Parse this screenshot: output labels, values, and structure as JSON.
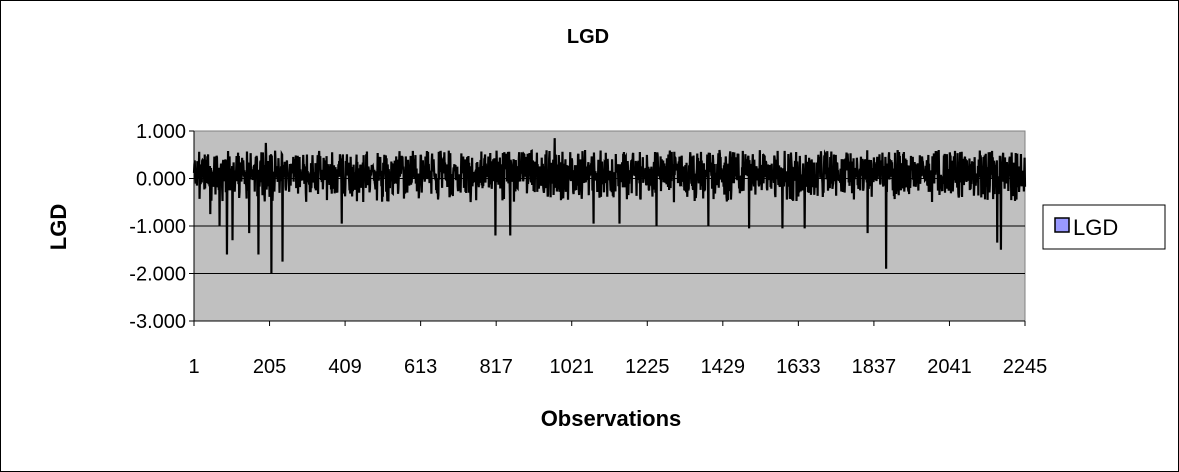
{
  "chart_data": {
    "type": "line",
    "title": "LGD",
    "xlabel": "Observations",
    "ylabel": "LGD",
    "x_range": [
      1,
      2245
    ],
    "ylim": [
      -3,
      1
    ],
    "y_ticks": [
      "1.000",
      "0.000",
      "-1.000",
      "-2.000",
      "-3.000"
    ],
    "y_tick_values": [
      1,
      0,
      -1,
      -2,
      -3
    ],
    "x_ticks": [
      "1",
      "205",
      "409",
      "613",
      "817",
      "1021",
      "1225",
      "1429",
      "1633",
      "1837",
      "2041",
      "2245"
    ],
    "x_tick_values": [
      1,
      205,
      409,
      613,
      817,
      1021,
      1225,
      1429,
      1633,
      1837,
      2041,
      2245
    ],
    "grid": "horizontal",
    "plot_background": "#c0c0c0",
    "line_color": "#000000",
    "legend_position": "right",
    "series": [
      {
        "name": "LGD",
        "legend_swatch_color": "#9999ff",
        "sample_range": [
          1,
          2245
        ],
        "typical_range": [
          -0.5,
          0.6
        ],
        "notable_points": [
          {
            "x": 45,
            "y": -0.75
          },
          {
            "x": 70,
            "y": -1.0
          },
          {
            "x": 90,
            "y": -1.6
          },
          {
            "x": 105,
            "y": -1.3
          },
          {
            "x": 150,
            "y": -1.15
          },
          {
            "x": 175,
            "y": -1.6
          },
          {
            "x": 195,
            "y": 0.75
          },
          {
            "x": 210,
            "y": -2.0
          },
          {
            "x": 240,
            "y": -1.75
          },
          {
            "x": 400,
            "y": -0.95
          },
          {
            "x": 815,
            "y": -1.2
          },
          {
            "x": 855,
            "y": -1.2
          },
          {
            "x": 975,
            "y": 0.85
          },
          {
            "x": 1080,
            "y": -0.95
          },
          {
            "x": 1150,
            "y": -0.95
          },
          {
            "x": 1250,
            "y": -1.0
          },
          {
            "x": 1390,
            "y": -1.0
          },
          {
            "x": 1500,
            "y": -1.05
          },
          {
            "x": 1590,
            "y": -1.05
          },
          {
            "x": 1650,
            "y": -1.05
          },
          {
            "x": 1820,
            "y": -1.15
          },
          {
            "x": 1870,
            "y": -1.9
          },
          {
            "x": 2170,
            "y": -1.35
          },
          {
            "x": 2180,
            "y": -1.5
          }
        ]
      }
    ]
  }
}
